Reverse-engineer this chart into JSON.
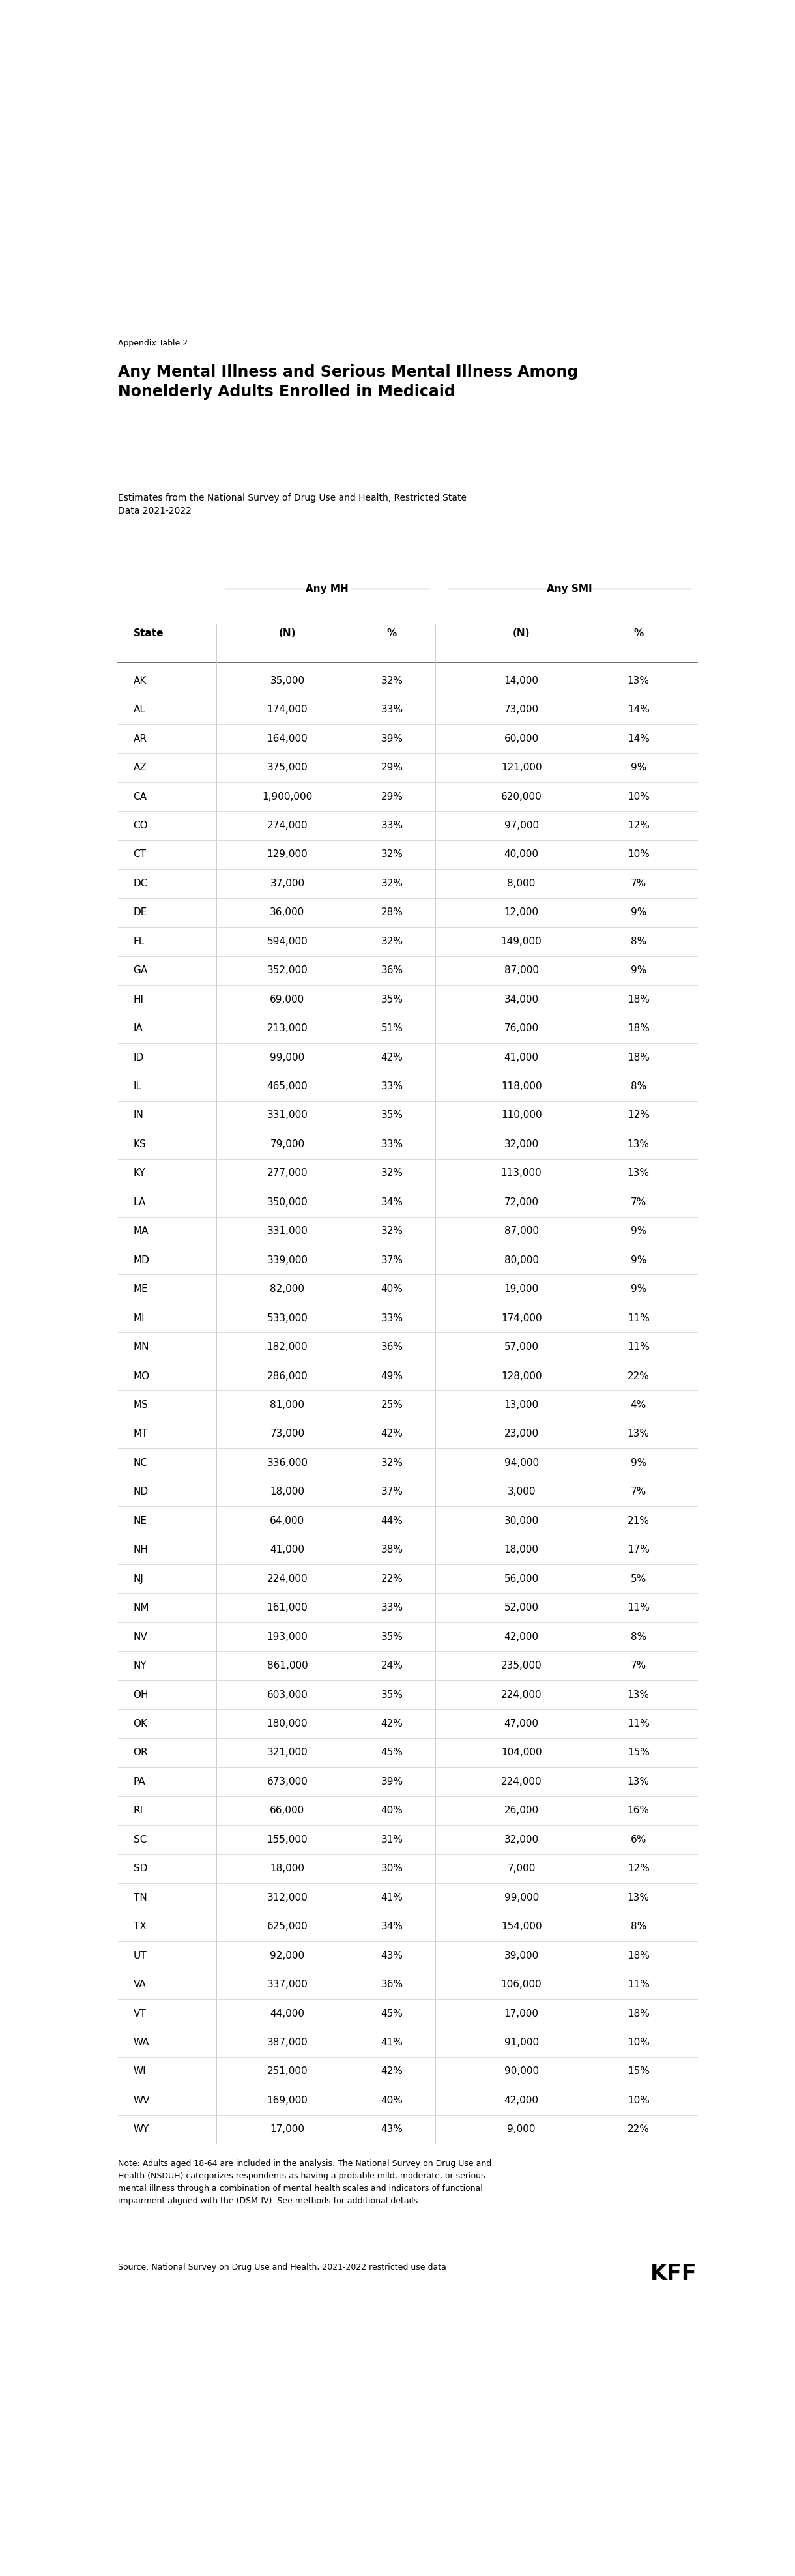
{
  "appendix_label": "Appendix Table 2",
  "title": "Any Mental Illness and Serious Mental Illness Among\nNonelderly Adults Enrolled in Medicaid",
  "subtitle": "Estimates from the National Survey of Drug Use and Health, Restricted State\nData 2021-2022",
  "col_header_group1": "Any MH",
  "col_header_group2": "Any SMI",
  "col_headers": [
    "State",
    "(N)",
    "%",
    "(N)",
    "%"
  ],
  "rows": [
    [
      "AK",
      "35,000",
      "32%",
      "14,000",
      "13%"
    ],
    [
      "AL",
      "174,000",
      "33%",
      "73,000",
      "14%"
    ],
    [
      "AR",
      "164,000",
      "39%",
      "60,000",
      "14%"
    ],
    [
      "AZ",
      "375,000",
      "29%",
      "121,000",
      "9%"
    ],
    [
      "CA",
      "1,900,000",
      "29%",
      "620,000",
      "10%"
    ],
    [
      "CO",
      "274,000",
      "33%",
      "97,000",
      "12%"
    ],
    [
      "CT",
      "129,000",
      "32%",
      "40,000",
      "10%"
    ],
    [
      "DC",
      "37,000",
      "32%",
      "8,000",
      "7%"
    ],
    [
      "DE",
      "36,000",
      "28%",
      "12,000",
      "9%"
    ],
    [
      "FL",
      "594,000",
      "32%",
      "149,000",
      "8%"
    ],
    [
      "GA",
      "352,000",
      "36%",
      "87,000",
      "9%"
    ],
    [
      "HI",
      "69,000",
      "35%",
      "34,000",
      "18%"
    ],
    [
      "IA",
      "213,000",
      "51%",
      "76,000",
      "18%"
    ],
    [
      "ID",
      "99,000",
      "42%",
      "41,000",
      "18%"
    ],
    [
      "IL",
      "465,000",
      "33%",
      "118,000",
      "8%"
    ],
    [
      "IN",
      "331,000",
      "35%",
      "110,000",
      "12%"
    ],
    [
      "KS",
      "79,000",
      "33%",
      "32,000",
      "13%"
    ],
    [
      "KY",
      "277,000",
      "32%",
      "113,000",
      "13%"
    ],
    [
      "LA",
      "350,000",
      "34%",
      "72,000",
      "7%"
    ],
    [
      "MA",
      "331,000",
      "32%",
      "87,000",
      "9%"
    ],
    [
      "MD",
      "339,000",
      "37%",
      "80,000",
      "9%"
    ],
    [
      "ME",
      "82,000",
      "40%",
      "19,000",
      "9%"
    ],
    [
      "MI",
      "533,000",
      "33%",
      "174,000",
      "11%"
    ],
    [
      "MN",
      "182,000",
      "36%",
      "57,000",
      "11%"
    ],
    [
      "MO",
      "286,000",
      "49%",
      "128,000",
      "22%"
    ],
    [
      "MS",
      "81,000",
      "25%",
      "13,000",
      "4%"
    ],
    [
      "MT",
      "73,000",
      "42%",
      "23,000",
      "13%"
    ],
    [
      "NC",
      "336,000",
      "32%",
      "94,000",
      "9%"
    ],
    [
      "ND",
      "18,000",
      "37%",
      "3,000",
      "7%"
    ],
    [
      "NE",
      "64,000",
      "44%",
      "30,000",
      "21%"
    ],
    [
      "NH",
      "41,000",
      "38%",
      "18,000",
      "17%"
    ],
    [
      "NJ",
      "224,000",
      "22%",
      "56,000",
      "5%"
    ],
    [
      "NM",
      "161,000",
      "33%",
      "52,000",
      "11%"
    ],
    [
      "NV",
      "193,000",
      "35%",
      "42,000",
      "8%"
    ],
    [
      "NY",
      "861,000",
      "24%",
      "235,000",
      "7%"
    ],
    [
      "OH",
      "603,000",
      "35%",
      "224,000",
      "13%"
    ],
    [
      "OK",
      "180,000",
      "42%",
      "47,000",
      "11%"
    ],
    [
      "OR",
      "321,000",
      "45%",
      "104,000",
      "15%"
    ],
    [
      "PA",
      "673,000",
      "39%",
      "224,000",
      "13%"
    ],
    [
      "RI",
      "66,000",
      "40%",
      "26,000",
      "16%"
    ],
    [
      "SC",
      "155,000",
      "31%",
      "32,000",
      "6%"
    ],
    [
      "SD",
      "18,000",
      "30%",
      "7,000",
      "12%"
    ],
    [
      "TN",
      "312,000",
      "41%",
      "99,000",
      "13%"
    ],
    [
      "TX",
      "625,000",
      "34%",
      "154,000",
      "8%"
    ],
    [
      "UT",
      "92,000",
      "43%",
      "39,000",
      "18%"
    ],
    [
      "VA",
      "337,000",
      "36%",
      "106,000",
      "11%"
    ],
    [
      "VT",
      "44,000",
      "45%",
      "17,000",
      "18%"
    ],
    [
      "WA",
      "387,000",
      "41%",
      "91,000",
      "10%"
    ],
    [
      "WI",
      "251,000",
      "42%",
      "90,000",
      "15%"
    ],
    [
      "WV",
      "169,000",
      "40%",
      "42,000",
      "10%"
    ],
    [
      "WY",
      "17,000",
      "43%",
      "9,000",
      "22%"
    ]
  ],
  "note": "Note: Adults aged 18-64 are included in the analysis. The National Survey on Drug Use and\nHealth (NSDUH) categorizes respondents as having a probable mild, moderate, or serious\nmental illness through a combination of mental health scales and indicators of functional\nimpairment aligned with the (DSM-IV). See methods for additional details.",
  "source": "Source: National Survey on Drug Use and Health, 2021-2022 restricted use data",
  "kff_logo": "KFF",
  "bg_color": "#ffffff",
  "text_color": "#000000",
  "line_color": "#cccccc",
  "header_line_color": "#555555"
}
